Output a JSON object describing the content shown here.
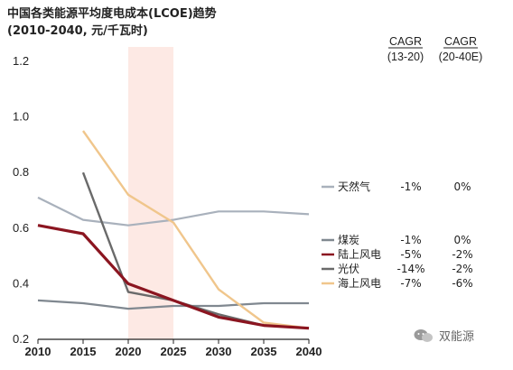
{
  "header": {
    "title": "中国各类能源平均度电成本(LCOE)趋势",
    "subtitle": "(2010-2040, 元/千瓦时)"
  },
  "table_headers": {
    "col1": [
      "CAGR",
      "(13-20)"
    ],
    "col2": [
      "CAGR",
      "(20-40E)"
    ]
  },
  "watermark": {
    "text": "双能源"
  },
  "colors": {
    "gas": "#a9b1bc",
    "coal": "#808890",
    "onshore": "#8b1520",
    "solar": "#6a6a6a",
    "offshore": "#f0c68c",
    "highlight": "#fde9e4"
  },
  "chart_data": {
    "type": "line",
    "title": "中国各类能源平均度电成本(LCOE)趋势",
    "subtitle": "(2010-2040, 元/千瓦时)",
    "xlabel": "",
    "ylabel": "",
    "xlim": [
      2010,
      2040
    ],
    "ylim": [
      0.2,
      1.2
    ],
    "xticks": [
      2010,
      2015,
      2020,
      2025,
      2030,
      2035,
      2040
    ],
    "yticks": [
      "0.2",
      "0.4",
      "0.6",
      "0.8",
      "1.0",
      "1.2"
    ],
    "highlight_range": [
      2020,
      2025
    ],
    "grid": false,
    "legend": "right",
    "series": [
      {
        "key": "gas",
        "name": "天然气",
        "cagr_13_20": "-1%",
        "cagr_20_40": "0%",
        "x": [
          2010,
          2015,
          2020,
          2025,
          2030,
          2035,
          2040
        ],
        "y": [
          0.71,
          0.63,
          0.61,
          0.63,
          0.66,
          0.66,
          0.65
        ]
      },
      {
        "key": "coal",
        "name": "煤炭",
        "cagr_13_20": "-1%",
        "cagr_20_40": "0%",
        "x": [
          2010,
          2015,
          2020,
          2025,
          2030,
          2035,
          2040
        ],
        "y": [
          0.34,
          0.33,
          0.31,
          0.32,
          0.32,
          0.33,
          0.33
        ]
      },
      {
        "key": "onshore",
        "name": "陆上风电",
        "cagr_13_20": "-5%",
        "cagr_20_40": "-2%",
        "x": [
          2010,
          2015,
          2020,
          2025,
          2030,
          2035,
          2040
        ],
        "y": [
          0.61,
          0.58,
          0.4,
          0.34,
          0.28,
          0.25,
          0.24
        ]
      },
      {
        "key": "solar",
        "name": "光伏",
        "cagr_13_20": "-14%",
        "cagr_20_40": "-2%",
        "x": [
          2015,
          2020,
          2025,
          2030,
          2035,
          2040
        ],
        "y": [
          0.8,
          0.37,
          0.34,
          0.29,
          0.25,
          0.24
        ]
      },
      {
        "key": "offshore",
        "name": "海上风电",
        "cagr_13_20": "-7%",
        "cagr_20_40": "-6%",
        "x": [
          2015,
          2020,
          2025,
          2030,
          2035,
          2040
        ],
        "y": [
          0.95,
          0.72,
          0.62,
          0.38,
          0.26,
          0.24
        ]
      }
    ]
  }
}
